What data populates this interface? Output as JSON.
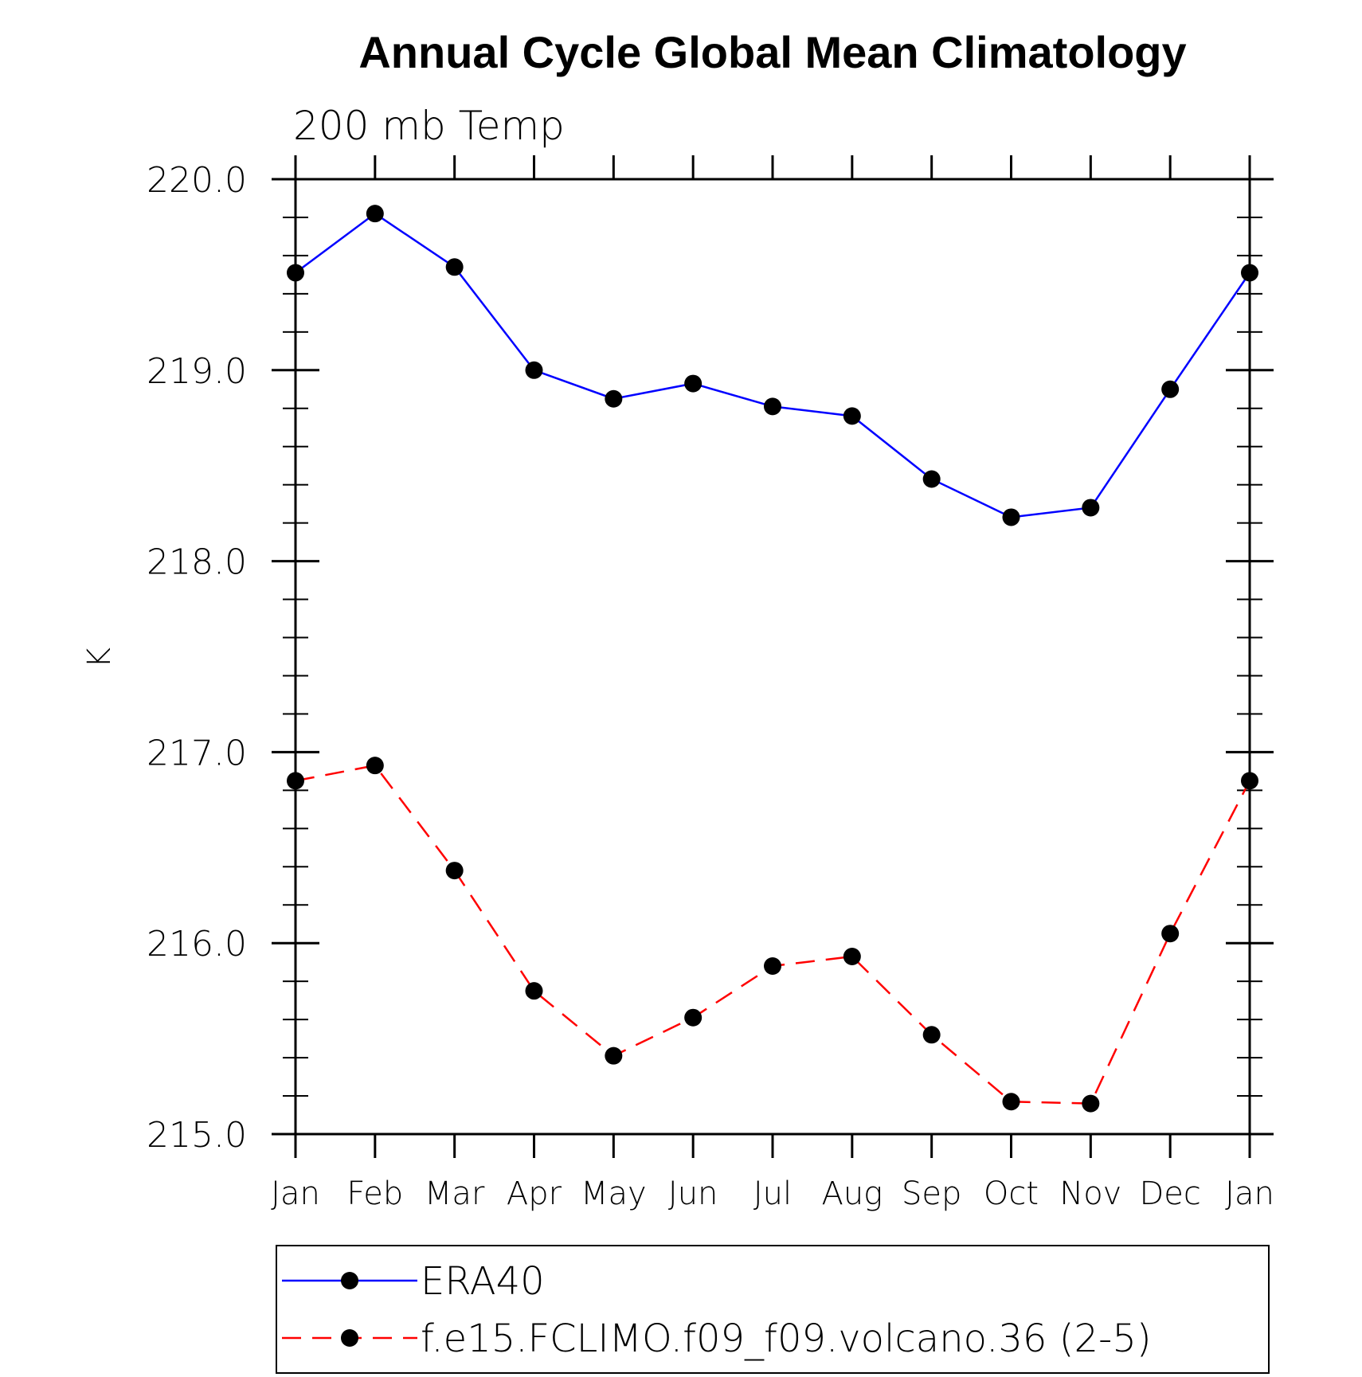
{
  "chart_data": {
    "type": "line",
    "title": "Annual Cycle Global Mean Climatology",
    "subtitle": "200 mb Temp",
    "xlabel": "",
    "ylabel": "K",
    "categories": [
      "Jan",
      "Feb",
      "Mar",
      "Apr",
      "May",
      "Jun",
      "Jul",
      "Aug",
      "Sep",
      "Oct",
      "Nov",
      "Dec",
      "Jan"
    ],
    "ylim": [
      215.0,
      220.0
    ],
    "yticks": [
      "215.0",
      "216.0",
      "217.0",
      "218.0",
      "219.0",
      "220.0"
    ],
    "grid": false,
    "legend_position": "bottom",
    "series": [
      {
        "name": "ERA40",
        "color": "#0000ff",
        "style": "solid",
        "marker": "filled-circle",
        "values": [
          219.51,
          219.82,
          219.54,
          219.0,
          218.85,
          218.93,
          218.81,
          218.76,
          218.43,
          218.23,
          218.28,
          218.9,
          219.51
        ]
      },
      {
        "name": "f.e15.FCLIMO.f09_f09.volcano.36 (2-5)",
        "color": "#ff0000",
        "style": "dashed",
        "marker": "filled-circle",
        "values": [
          216.85,
          216.93,
          216.38,
          215.75,
          215.41,
          215.61,
          215.88,
          215.93,
          215.52,
          215.17,
          215.16,
          216.05,
          216.85
        ]
      }
    ]
  }
}
